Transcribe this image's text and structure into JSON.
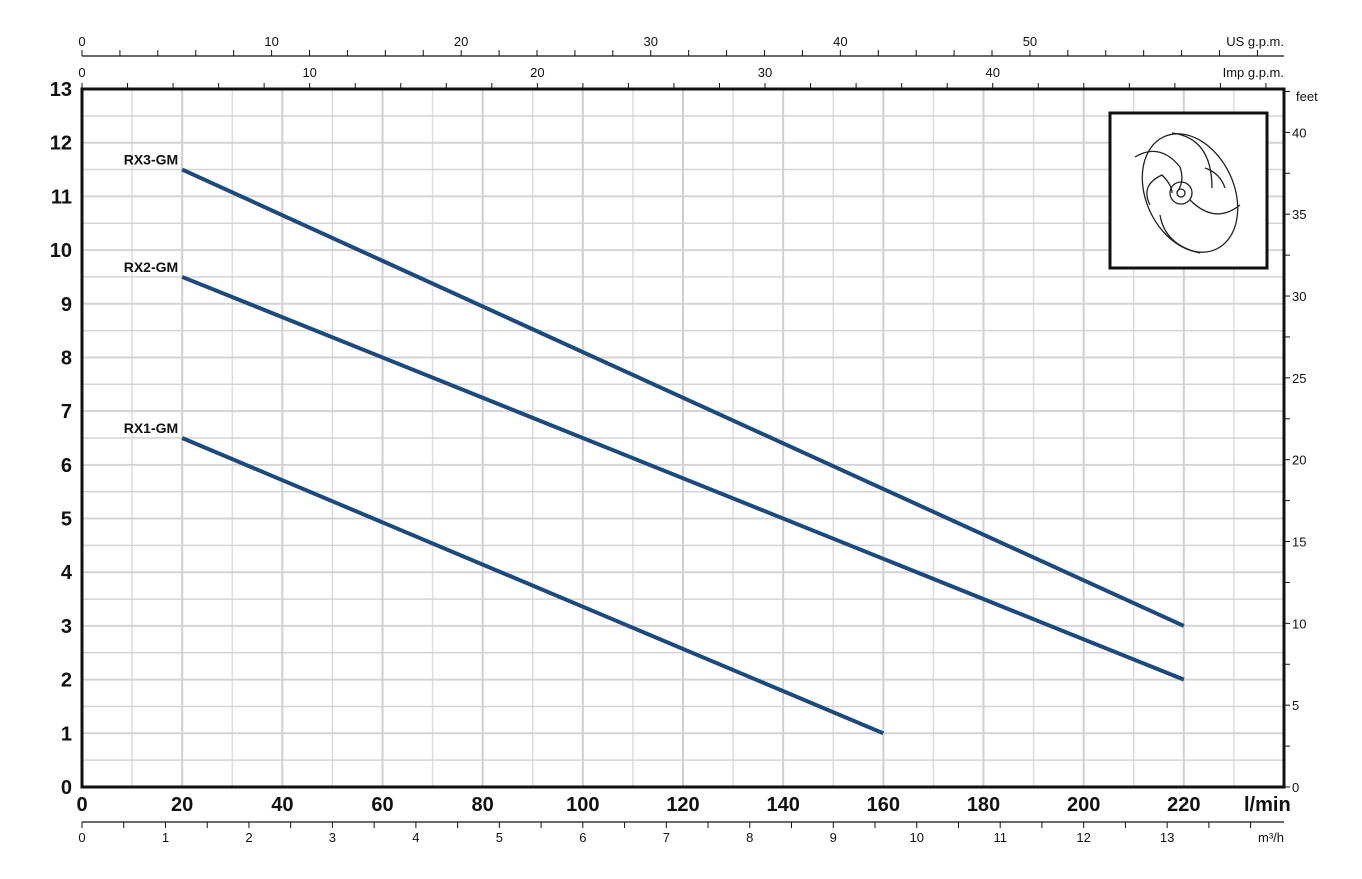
{
  "chart_data": {
    "type": "line",
    "xlabel": "l/min",
    "ylabel": "",
    "xlim": [
      0,
      240
    ],
    "ylim": [
      0,
      13
    ],
    "x_ticks": [
      0,
      20,
      40,
      60,
      80,
      100,
      120,
      140,
      160,
      180,
      200,
      220
    ],
    "y_ticks": [
      0,
      1,
      2,
      3,
      4,
      5,
      6,
      7,
      8,
      9,
      10,
      11,
      12,
      13
    ],
    "grid": true,
    "line_color": "#1c4a7e",
    "series": [
      {
        "name": "RX3-GM",
        "x": [
          20,
          220
        ],
        "y": [
          11.5,
          3
        ]
      },
      {
        "name": "RX2-GM",
        "x": [
          20,
          220
        ],
        "y": [
          9.5,
          2
        ]
      },
      {
        "name": "RX1-GM",
        "x": [
          20,
          160
        ],
        "y": [
          6.5,
          1
        ]
      }
    ],
    "secondary_axes": {
      "us_gpm": {
        "label": "US g.p.m.",
        "ticks": [
          0,
          10,
          20,
          30,
          40,
          50
        ]
      },
      "imp_gpm": {
        "label": "Imp g.p.m.",
        "ticks": [
          0,
          10,
          20,
          30,
          40
        ]
      },
      "m3h": {
        "label": "m³/h",
        "ticks": [
          0,
          1,
          2,
          3,
          4,
          5,
          6,
          7,
          8,
          9,
          10,
          11,
          12,
          13
        ]
      },
      "feet": {
        "label": "feet",
        "ticks": [
          0,
          5,
          10,
          15,
          20,
          25,
          30,
          35,
          40
        ]
      }
    },
    "inset_image": "impeller-drawing"
  }
}
